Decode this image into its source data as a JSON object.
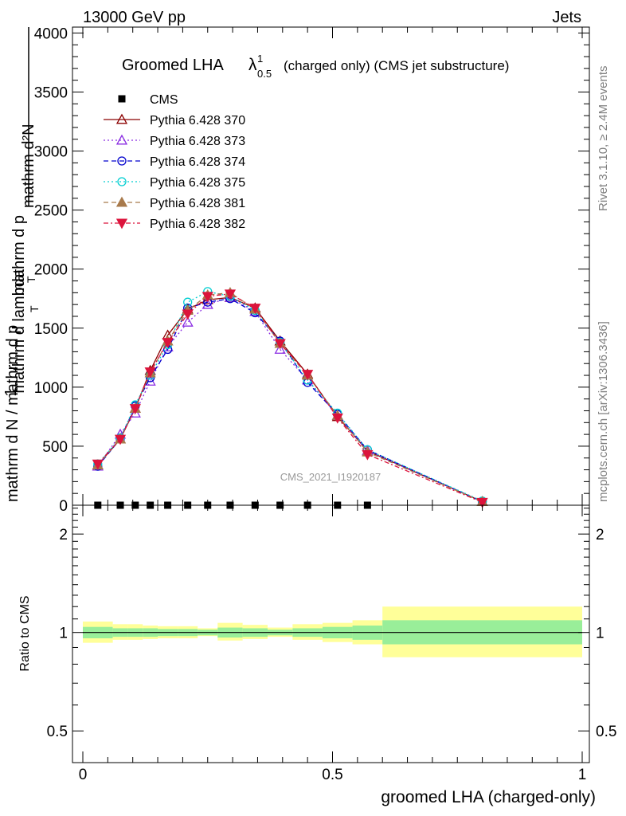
{
  "header": {
    "energy": "13000 GeV pp",
    "process": "Jets"
  },
  "side": {
    "rivet": "Rivet 3.1.10, ≥ 2.4M events",
    "mcplots": "mcplots.cern.ch [arXiv:1306.3436]"
  },
  "chart_data": [
    {
      "type": "line",
      "title": {
        "main": "Groomed LHA",
        "symbol": "λ",
        "sup": "1",
        "sub": "0.5",
        "suffix": "(charged only) (CMS jet substructure)"
      },
      "ylabel": {
        "numerator": "mathrm d²N",
        "denominator": "mathrm d p",
        "denominator_sub": "T",
        "denominator_tail": " mathrm d lambda",
        "prefactor": "1",
        "prefactor_denominator": "mathrm d N / mathrm d p",
        "prefactor_sub": "T"
      },
      "watermark": "CMS_2021_I1920187",
      "xlim": [
        -0.02,
        1.02
      ],
      "ylim": [
        0,
        4050
      ],
      "yticks": [
        {
          "v": 0,
          "label": "0"
        },
        {
          "v": 500,
          "label": "500"
        },
        {
          "v": 1000,
          "label": "1000"
        },
        {
          "v": 1500,
          "label": "1500"
        },
        {
          "v": 2000,
          "label": "2000"
        },
        {
          "v": 2500,
          "label": "2500"
        },
        {
          "v": 3000,
          "label": "3000"
        },
        {
          "v": 3500,
          "label": "3500"
        },
        {
          "v": 4000,
          "label": "4000"
        }
      ],
      "cms_x": [
        0.03,
        0.075,
        0.105,
        0.135,
        0.17,
        0.21,
        0.25,
        0.295,
        0.345,
        0.395,
        0.45,
        0.51,
        0.57
      ],
      "cms_y": [
        0,
        0,
        0,
        0,
        0,
        0,
        0,
        0,
        0,
        0,
        0,
        0,
        0
      ],
      "x": [
        0.03,
        0.075,
        0.105,
        0.135,
        0.17,
        0.21,
        0.25,
        0.295,
        0.345,
        0.395,
        0.45,
        0.51,
        0.57,
        0.8
      ],
      "series": [
        {
          "name": "Pythia 6.428 370",
          "color": "#8b0000",
          "marker": "triangle-open",
          "dash": "",
          "values": [
            340,
            560,
            820,
            1140,
            1440,
            1660,
            1740,
            1760,
            1670,
            1390,
            1110,
            750,
            460,
            30
          ]
        },
        {
          "name": "Pythia 6.428 373",
          "color": "#8a2be2",
          "marker": "triangle-open",
          "dash": "2,3",
          "values": [
            330,
            600,
            780,
            1050,
            1340,
            1550,
            1700,
            1760,
            1640,
            1320,
            1060,
            760,
            460,
            30
          ]
        },
        {
          "name": "Pythia 6.428 374",
          "color": "#0000cd",
          "marker": "circle-open",
          "dash": "6,4",
          "values": [
            330,
            560,
            840,
            1080,
            1320,
            1670,
            1720,
            1750,
            1630,
            1390,
            1040,
            770,
            470,
            30
          ]
        },
        {
          "name": "Pythia 6.428 375",
          "color": "#00ced1",
          "marker": "circle-open",
          "dash": "2,3",
          "values": [
            350,
            570,
            850,
            1100,
            1360,
            1720,
            1810,
            1770,
            1650,
            1380,
            1060,
            780,
            470,
            35
          ]
        },
        {
          "name": "Pythia 6.428 381",
          "color": "#a87a4c",
          "marker": "triangle-filled",
          "dash": "6,4",
          "values": [
            340,
            560,
            820,
            1120,
            1390,
            1650,
            1780,
            1800,
            1660,
            1370,
            1100,
            760,
            450,
            30
          ]
        },
        {
          "name": "Pythia 6.428 382",
          "color": "#dc143c",
          "marker": "triangle-down-filled",
          "dash": "6,3,2,3",
          "values": [
            350,
            560,
            820,
            1130,
            1380,
            1620,
            1770,
            1790,
            1670,
            1370,
            1110,
            740,
            430,
            25
          ]
        }
      ],
      "legend_cms": "CMS"
    },
    {
      "type": "area",
      "ylabel": "Ratio to CMS",
      "xlabel": "groomed LHA (charged-only)",
      "xticks": [
        {
          "v": 0,
          "label": "0"
        },
        {
          "v": 0.5,
          "label": "0.5"
        },
        {
          "v": 1,
          "label": "1"
        }
      ],
      "yticks": [
        {
          "v": 0.5,
          "label": "0.5"
        },
        {
          "v": 1,
          "label": "1"
        },
        {
          "v": 2,
          "label": "2"
        }
      ],
      "ylim": [
        0.4,
        2.45
      ],
      "yscale": "log",
      "bins": [
        0,
        0.06,
        0.09,
        0.12,
        0.15,
        0.19,
        0.23,
        0.27,
        0.32,
        0.37,
        0.42,
        0.48,
        0.54,
        0.6,
        1.0
      ],
      "inner_band": [
        [
          0.96,
          1.04
        ],
        [
          0.97,
          1.03
        ],
        [
          0.97,
          1.03
        ],
        [
          0.97,
          1.03
        ],
        [
          0.975,
          1.025
        ],
        [
          0.975,
          1.025
        ],
        [
          0.98,
          1.02
        ],
        [
          0.965,
          1.035
        ],
        [
          0.97,
          1.03
        ],
        [
          0.98,
          1.02
        ],
        [
          0.97,
          1.03
        ],
        [
          0.96,
          1.04
        ],
        [
          0.95,
          1.05
        ],
        [
          0.92,
          1.09
        ]
      ],
      "outer_band": [
        [
          0.93,
          1.08
        ],
        [
          0.95,
          1.06
        ],
        [
          0.95,
          1.06
        ],
        [
          0.955,
          1.05
        ],
        [
          0.96,
          1.045
        ],
        [
          0.96,
          1.045
        ],
        [
          0.975,
          1.03
        ],
        [
          0.945,
          1.07
        ],
        [
          0.955,
          1.055
        ],
        [
          0.97,
          1.035
        ],
        [
          0.95,
          1.06
        ],
        [
          0.935,
          1.07
        ],
        [
          0.92,
          1.09
        ],
        [
          0.84,
          1.2
        ]
      ],
      "inner_color": "#99ee99",
      "outer_color": "#ffff99"
    }
  ]
}
